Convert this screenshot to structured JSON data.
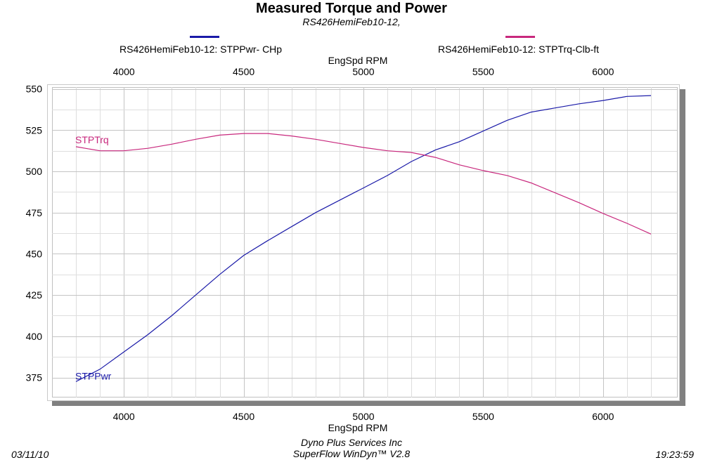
{
  "chart_data": {
    "type": "line",
    "title": "Measured Torque and Power",
    "subtitle": "RS426HemiFeb10-12,",
    "xlabel_top": "EngSpd  RPM",
    "xlabel": "EngSpd  RPM",
    "ylabel": "",
    "xlim": [
      3800,
      6200
    ],
    "ylim": [
      365,
      552
    ],
    "xticks": [
      4000,
      4500,
      5000,
      5500,
      6000
    ],
    "yticks": [
      375,
      400,
      425,
      450,
      475,
      500,
      525,
      550
    ],
    "grid": true,
    "series": [
      {
        "name": "RS426HemiFeb10-12: STPPwr- CHp",
        "label": "STPPwr",
        "color": "#1a1aa8",
        "x": [
          3800,
          3900,
          4000,
          4100,
          4200,
          4300,
          4400,
          4500,
          4600,
          4700,
          4800,
          4900,
          5000,
          5100,
          5200,
          5300,
          5400,
          5500,
          5600,
          5700,
          5800,
          5900,
          6000,
          6100,
          6200
        ],
        "y": [
          372.5,
          380,
          390.5,
          401,
          412.5,
          425,
          437.5,
          449,
          458,
          466.5,
          475,
          482.5,
          490,
          497.5,
          506,
          513,
          518,
          524.5,
          531,
          536,
          538.5,
          541,
          543,
          545.5,
          546
        ]
      },
      {
        "name": "RS426HemiFeb10-12: STPTrq-Clb-ft",
        "label": "STPTrq",
        "color": "#c8287d",
        "x": [
          3800,
          3900,
          4000,
          4100,
          4200,
          4300,
          4400,
          4500,
          4600,
          4700,
          4800,
          4900,
          5000,
          5100,
          5200,
          5300,
          5400,
          5500,
          5600,
          5700,
          5800,
          5900,
          6000,
          6100,
          6200
        ],
        "y": [
          515,
          512.5,
          512.5,
          514,
          516.5,
          519.5,
          522,
          523,
          523,
          521.5,
          519.5,
          517,
          514.5,
          512.5,
          511.5,
          508.5,
          504,
          500.5,
          497.5,
          493,
          487,
          481,
          474.5,
          468.5,
          462
        ]
      }
    ]
  },
  "footer": {
    "date": "03/11/10",
    "time": "19:23:59",
    "company": "Dyno Plus Services Inc",
    "software": "SuperFlow WinDyn™ V2.8"
  }
}
